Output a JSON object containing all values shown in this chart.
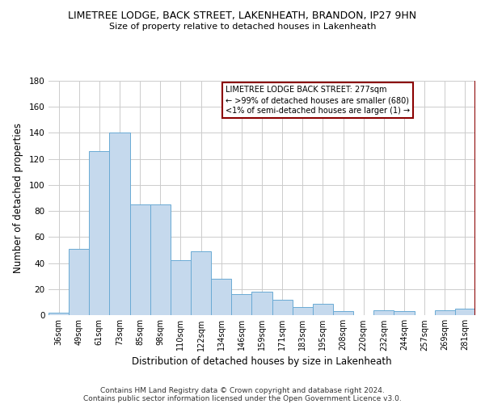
{
  "title": "LIMETREE LODGE, BACK STREET, LAKENHEATH, BRANDON, IP27 9HN",
  "subtitle": "Size of property relative to detached houses in Lakenheath",
  "xlabel": "Distribution of detached houses by size in Lakenheath",
  "ylabel": "Number of detached properties",
  "categories": [
    "36sqm",
    "49sqm",
    "61sqm",
    "73sqm",
    "85sqm",
    "98sqm",
    "110sqm",
    "122sqm",
    "134sqm",
    "146sqm",
    "159sqm",
    "171sqm",
    "183sqm",
    "195sqm",
    "208sqm",
    "220sqm",
    "232sqm",
    "244sqm",
    "257sqm",
    "269sqm",
    "281sqm"
  ],
  "values": [
    2,
    51,
    126,
    140,
    85,
    85,
    42,
    49,
    28,
    16,
    18,
    12,
    6,
    9,
    3,
    0,
    4,
    3,
    0,
    4,
    5
  ],
  "bar_color": "#c5d9ed",
  "bar_edge_color": "#6aaad4",
  "vline_x_idx": 20,
  "vline_color": "#8b0000",
  "ylim": [
    0,
    180
  ],
  "yticks": [
    0,
    20,
    40,
    60,
    80,
    100,
    120,
    140,
    160,
    180
  ],
  "legend_title": "LIMETREE LODGE BACK STREET: 277sqm",
  "legend_line1": "← >99% of detached houses are smaller (680)",
  "legend_line2": "<1% of semi-detached houses are larger (1) →",
  "footer1": "Contains HM Land Registry data © Crown copyright and database right 2024.",
  "footer2": "Contains public sector information licensed under the Open Government Licence v3.0.",
  "background_color": "#ffffff",
  "grid_color": "#cccccc"
}
